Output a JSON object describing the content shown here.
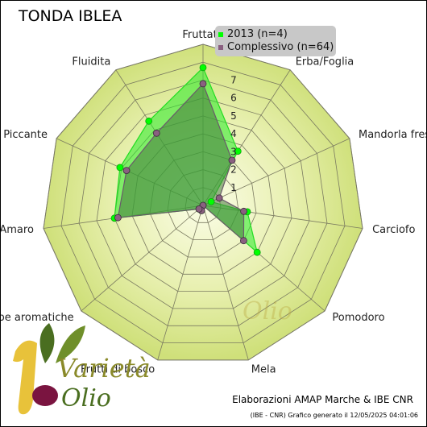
{
  "title": "TONDA IBLEA",
  "legend": {
    "items": [
      {
        "label": "2013 (n=4)",
        "color": "#00ff00"
      },
      {
        "label": "Complessivo (n=64)",
        "color": "#8a6080"
      }
    ]
  },
  "credit": "Elaborazioni AMAP Marche & IBE CNR",
  "generated": "(IBE - CNR) Grafico generato il 12/05/2025 04:01:06",
  "logo": {
    "text_top": "Varietà",
    "text_bottom": "Olio",
    "numeral": "1"
  },
  "chart_data": {
    "type": "radar",
    "categories": [
      "Fruttato",
      "Erba/Foglia",
      "Mandorla fresca",
      "Carciofo",
      "Pomodoro",
      "Mela",
      "Frutti di bosco",
      "Erbe aromatiche",
      "Amaro",
      "Piccante",
      "Fluidita"
    ],
    "series": [
      {
        "name": "2013 (n=4)",
        "color": "#00ff00",
        "values": [
          7.7,
          3.6,
          0.5,
          2.5,
          4.0,
          0.0,
          0.3,
          0.3,
          5.0,
          5.1,
          5.6
        ]
      },
      {
        "name": "Complessivo (n=64)",
        "color": "#8a6080",
        "values": [
          6.8,
          3.0,
          1.0,
          2.3,
          3.0,
          0.0,
          0.3,
          0.3,
          4.8,
          4.7,
          4.8
        ]
      }
    ],
    "rlim": [
      0,
      9
    ],
    "ticks": [
      1,
      2,
      3,
      4,
      5,
      6,
      7
    ],
    "grid": true
  }
}
